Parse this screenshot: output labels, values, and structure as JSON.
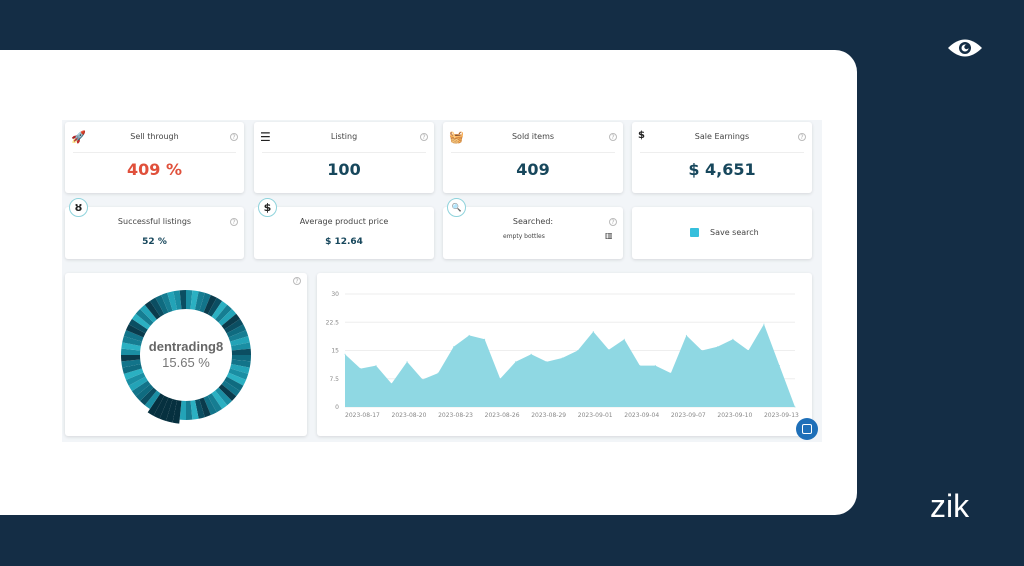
{
  "brand": {
    "logo_text": "zik",
    "eye_icon": "eye-icon"
  },
  "stats": [
    {
      "title": "Sell through",
      "value": "409 %",
      "icon": "rocket-icon",
      "color": "#e0503b"
    },
    {
      "title": "Listing",
      "value": "100",
      "icon": "list-icon",
      "color": "#17475c"
    },
    {
      "title": "Sold items",
      "value": "409",
      "icon": "basket-icon",
      "color": "#17475c"
    },
    {
      "title": "Sale Earnings",
      "value": "$ 4,651",
      "icon": "hand-dollar-icon",
      "color": "#17475c"
    }
  ],
  "row2": {
    "successful": {
      "title": "Successful listings",
      "value": "52 %"
    },
    "avg_price": {
      "title": "Average product price",
      "value": "$ 12.64"
    },
    "searched": {
      "title": "Searched:",
      "query": "empty bottles"
    },
    "save_label": "Save search"
  },
  "donut": {
    "label": "dentrading8",
    "value": "15.65 %"
  },
  "chart_data": {
    "type": "area",
    "color": "#8fd8e3",
    "x": [
      "2023-08-17",
      "2023-08-18",
      "2023-08-19",
      "2023-08-20",
      "2023-08-21",
      "2023-08-22",
      "2023-08-23",
      "2023-08-24",
      "2023-08-25",
      "2023-08-26",
      "2023-08-27",
      "2023-08-28",
      "2023-08-29",
      "2023-08-30",
      "2023-08-31",
      "2023-09-01",
      "2023-09-02",
      "2023-09-03",
      "2023-09-04",
      "2023-09-05",
      "2023-09-06",
      "2023-09-07",
      "2023-09-08",
      "2023-09-09",
      "2023-09-10",
      "2023-09-11",
      "2023-09-12",
      "2023-09-13",
      "2023-09-14",
      "2023-09-15"
    ],
    "values": [
      14,
      10.2,
      11,
      6.2,
      12,
      7.3,
      9,
      16,
      19,
      18,
      7.5,
      12,
      14,
      12,
      13,
      15,
      20,
      15.2,
      18,
      11,
      11,
      9,
      19,
      15,
      16,
      18,
      15,
      22,
      11,
      0
    ],
    "x_ticks": [
      "2023-08-17",
      "2023-08-20",
      "2023-08-23",
      "2023-08-26",
      "2023-08-29",
      "2023-09-01",
      "2023-09-04",
      "2023-09-07",
      "2023-09-10",
      "2023-09-13"
    ],
    "y_ticks": [
      "0",
      "7.5",
      "15",
      "22.5",
      "30"
    ],
    "ylim": [
      0,
      30
    ],
    "grid": true
  }
}
